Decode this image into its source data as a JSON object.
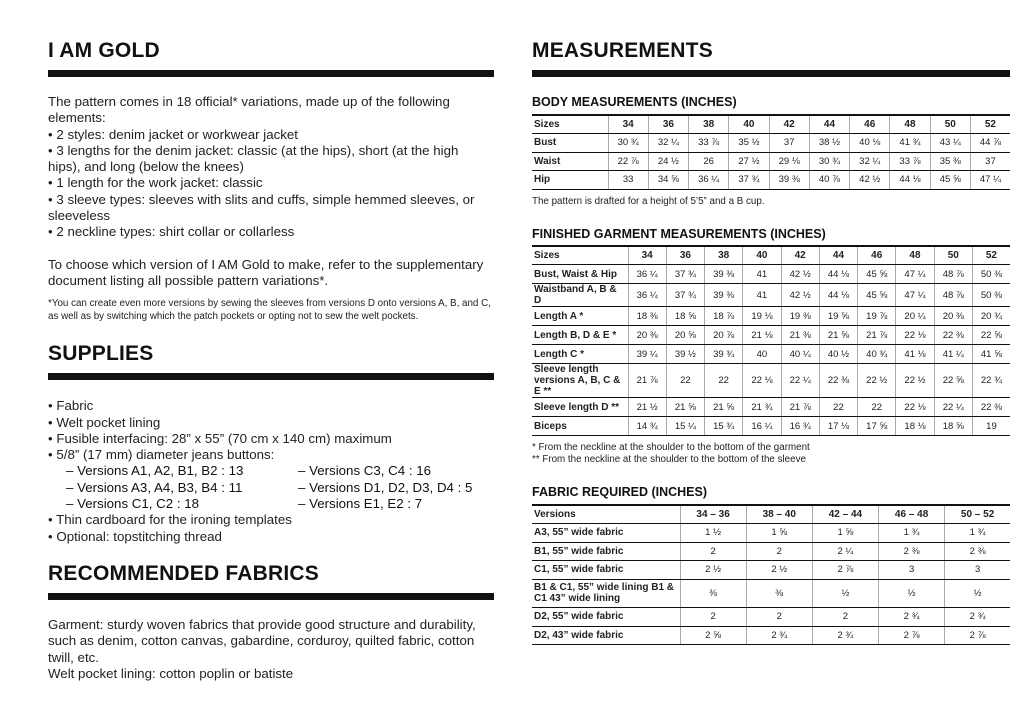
{
  "left": {
    "title": "I AM GOLD",
    "intro": "The pattern comes in 18 official* variations, made up of the following elements:",
    "variations": [
      "• 2 styles: denim jacket or workwear jacket",
      "• 3 lengths for the denim jacket: classic (at the hips), short (at the high hips), and long (below the knees)",
      "• 1 length for the work jacket: classic",
      "• 3 sleeve types: sleeves with slits and cuffs, simple hemmed sleeves, or sleeveless",
      "• 2 neckline types: shirt collar or collarless"
    ],
    "choose": "To choose which version of I AM Gold to make, refer to the supplementary document listing all possible pattern variations*.",
    "footnote": "*You can create even more versions by sewing the sleeves from versions D onto versions A, B, and C, as well as by switching which the patch pockets or opting not to sew the welt pockets.",
    "supplies_title": "SUPPLIES",
    "supplies_a": [
      "• Fabric",
      "• Welt pocket lining",
      "• Fusible interfacing: 28” x 55” (70 cm x 140 cm) maximum",
      "• 5/8” (17 mm) diameter jeans buttons:"
    ],
    "buttons": [
      [
        "– Versions A1, A2, B1, B2 : 13",
        "– Versions C3, C4 : 16"
      ],
      [
        "– Versions A3, A4, B3, B4 : 11",
        "– Versions D1, D2, D3, D4 : 5"
      ],
      [
        "– Versions C1, C2 : 18",
        "– Versions E1, E2 : 7"
      ]
    ],
    "supplies_b": [
      "• Thin cardboard for the ironing templates",
      "• Optional: topstitching thread"
    ],
    "fabrics_title": "RECOMMENDED FABRICS",
    "fabrics": [
      "Garment: sturdy woven fabrics that provide good structure and durability, such as denim, cotton canvas, gabardine, corduroy, quilted fabric, cotton twill, etc.",
      "Welt pocket lining: cotton poplin or batiste"
    ]
  },
  "right": {
    "title": "MEASUREMENTS",
    "body": {
      "title": "BODY MEASUREMENTS (INCHES)",
      "header": [
        "Sizes",
        "34",
        "36",
        "38",
        "40",
        "42",
        "44",
        "46",
        "48",
        "50",
        "52"
      ],
      "rows": [
        [
          "Bust",
          "30 ¾",
          "32 ¼",
          "33 ⅞",
          "35 ½",
          "37",
          "38 ½",
          "40 ⅛",
          "41 ¾",
          "43 ¼",
          "44 ⅞"
        ],
        [
          "Waist",
          "22 ⅞",
          "24 ½",
          "26",
          "27 ½",
          "29 ⅛",
          "30 ¾",
          "32 ¼",
          "33 ⅞",
          "35 ⅜",
          "37"
        ],
        [
          "Hip",
          "33",
          "34 ⅝",
          "36 ¼",
          "37 ¾",
          "39 ⅜",
          "40 ⅞",
          "42 ½",
          "44 ⅛",
          "45 ⅝",
          "47 ¼"
        ]
      ],
      "note": "The pattern is drafted for a height of 5’5” and a B cup."
    },
    "finished": {
      "title": "FINISHED GARMENT MEASUREMENTS (INCHES)",
      "header": [
        "Sizes",
        "34",
        "36",
        "38",
        "40",
        "42",
        "44",
        "46",
        "48",
        "50",
        "52"
      ],
      "rows": [
        [
          "Bust, Waist & Hip",
          "36 ¼",
          "37 ¾",
          "39 ⅜",
          "41",
          "42 ½",
          "44 ⅛",
          "45 ⅝",
          "47 ¼",
          "48 ⅞",
          "50 ⅜"
        ],
        [
          "Waistband A, B & D",
          "36 ¼",
          "37 ¾",
          "39 ⅜",
          "41",
          "42 ½",
          "44 ⅛",
          "45 ⅝",
          "47 ¼",
          "48 ⅞",
          "50 ⅜"
        ],
        [
          "Length A *",
          "18 ⅜",
          "18 ⅝",
          "18 ⅞",
          "19 ⅛",
          "19 ⅜",
          "19 ⅝",
          "19 ⅞",
          "20 ¼",
          "20 ⅜",
          "20 ¾"
        ],
        [
          "Length B, D & E *",
          "20 ⅜",
          "20 ⅝",
          "20 ⅞",
          "21 ⅛",
          "21 ⅜",
          "21 ⅝",
          "21 ⅞",
          "22 ⅛",
          "22 ⅜",
          "22 ⅝"
        ],
        [
          "Length C *",
          "39 ¼",
          "39 ½",
          "39 ¾",
          "40",
          "40 ¼",
          "40 ½",
          "40 ¾",
          "41 ⅛",
          "41 ¼",
          "41 ⅝"
        ],
        [
          "Sleeve length versions A, B, C & E **",
          "21 ⅞",
          "22",
          "22",
          "22 ⅛",
          "22 ¼",
          "22 ⅜",
          "22 ½",
          "22 ½",
          "22 ⅝",
          "22 ¾"
        ],
        [
          "Sleeve length D **",
          "21 ½",
          "21 ⅝",
          "21 ⅝",
          "21 ¾",
          "21 ⅞",
          "22",
          "22",
          "22 ⅛",
          "22 ¼",
          "22 ⅜"
        ],
        [
          "Biceps",
          "14 ¾",
          "15 ¼",
          "15 ¾",
          "16 ¼",
          "16 ¾",
          "17 ⅛",
          "17 ⅝",
          "18 ⅛",
          "18 ⅝",
          "19"
        ]
      ],
      "notes": [
        "* From the neckline at the shoulder to the bottom of the garment",
        "** From the neckline at the shoulder to the bottom of the sleeve"
      ]
    },
    "fabric": {
      "title": "FABRIC REQUIRED (INCHES)",
      "header": [
        "Versions",
        "34 – 36",
        "38 – 40",
        "42 – 44",
        "46 – 48",
        "50 – 52"
      ],
      "rows": [
        [
          "A3, 55” wide fabric",
          "1 ½",
          "1 ⅝",
          "1 ⅝",
          "1 ¾",
          "1 ¾"
        ],
        [
          "B1, 55” wide fabric",
          "2",
          "2",
          "2 ¼",
          "2 ⅜",
          "2 ⅜"
        ],
        [
          "C1, 55” wide fabric",
          "2 ½",
          "2 ½",
          "2 ⅞",
          "3",
          "3"
        ],
        [
          "B1 & C1, 55” wide lining B1 & C1 43” wide lining",
          "⅜",
          "⅜",
          "½",
          "½",
          "½"
        ],
        [
          "D2, 55” wide fabric",
          "2",
          "2",
          "2",
          "2 ¾",
          "2 ¾"
        ],
        [
          "D2, 43” wide fabric",
          "2 ⅝",
          "2 ¾",
          "2 ¾",
          "2 ⅞",
          "2 ⅞"
        ]
      ]
    }
  }
}
